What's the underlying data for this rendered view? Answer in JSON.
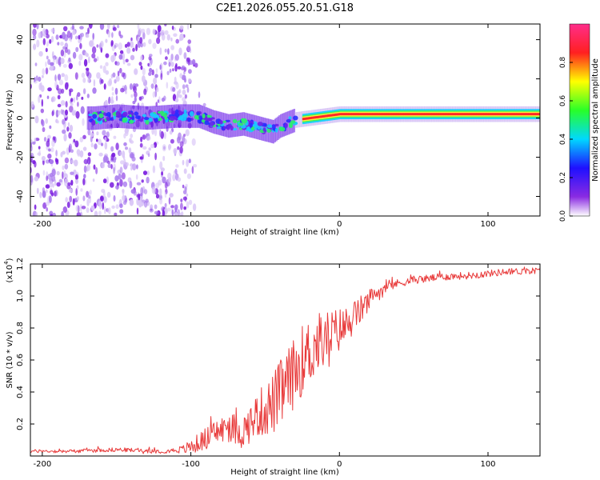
{
  "title": "C2E1.2026.055.20.51.G18",
  "chart_data": [
    {
      "type": "heatmap",
      "title": "C2E1.2026.055.20.51.G18",
      "xlabel": "Height of straight line (km)",
      "ylabel": "Frequency (Hz)",
      "xlim": [
        -208,
        135
      ],
      "ylim": [
        -50,
        48
      ],
      "xticks": [
        -200,
        -100,
        0,
        100
      ],
      "yticks": [
        -40,
        -20,
        0,
        20,
        40
      ],
      "ridge": [
        {
          "x": -165,
          "y": 0
        },
        {
          "x": -150,
          "y": 1
        },
        {
          "x": -130,
          "y": 0
        },
        {
          "x": -110,
          "y": 1
        },
        {
          "x": -95,
          "y": 1
        },
        {
          "x": -85,
          "y": -2
        },
        {
          "x": -75,
          "y": -4
        },
        {
          "x": -65,
          "y": -3
        },
        {
          "x": -55,
          "y": -5
        },
        {
          "x": -45,
          "y": -7
        },
        {
          "x": -40,
          "y": -4
        },
        {
          "x": -30,
          "y": -1
        },
        {
          "x": -20,
          "y": 0
        },
        {
          "x": -10,
          "y": 1
        },
        {
          "x": 0,
          "y": 2
        },
        {
          "x": 20,
          "y": 2
        },
        {
          "x": 60,
          "y": 2
        },
        {
          "x": 90,
          "y": 2
        },
        {
          "x": 135,
          "y": 2
        }
      ],
      "colorbar": {
        "label": "Normalized spectral amplitude",
        "range": [
          0,
          1
        ],
        "ticks": [
          0.0,
          0.2,
          0.4,
          0.6,
          0.8
        ],
        "tick_labels": [
          "0.0",
          "0.2",
          "0.4",
          "0.6",
          "0.8"
        ]
      }
    },
    {
      "type": "line",
      "xlabel": "Height of straight line (km)",
      "ylabel": "SNR (10 * v/v)",
      "exponent_label": "(x10",
      "exponent_power": "4",
      "exponent_close": ")",
      "xlim": [
        -208,
        135
      ],
      "ylim": [
        0.0,
        1.2
      ],
      "xticks": [
        -200,
        -100,
        0,
        100
      ],
      "yticks": [
        0.2,
        0.4,
        0.6,
        0.8,
        1.0,
        1.2
      ],
      "ytick_labels": [
        "0.2",
        "0.4",
        "0.6",
        "0.8",
        "1.0",
        "1.2"
      ],
      "series": [
        {
          "name": "SNR",
          "color": "#e83a3a",
          "points": [
            {
              "x": -208,
              "y": 0.03
            },
            {
              "x": -180,
              "y": 0.03
            },
            {
              "x": -150,
              "y": 0.04
            },
            {
              "x": -120,
              "y": 0.03
            },
            {
              "x": -105,
              "y": 0.04
            },
            {
              "x": -95,
              "y": 0.08
            },
            {
              "x": -85,
              "y": 0.14
            },
            {
              "x": -75,
              "y": 0.18
            },
            {
              "x": -65,
              "y": 0.15
            },
            {
              "x": -55,
              "y": 0.26
            },
            {
              "x": -45,
              "y": 0.32
            },
            {
              "x": -35,
              "y": 0.45
            },
            {
              "x": -25,
              "y": 0.6
            },
            {
              "x": -15,
              "y": 0.7
            },
            {
              "x": -5,
              "y": 0.76
            },
            {
              "x": 5,
              "y": 0.82
            },
            {
              "x": 15,
              "y": 0.92
            },
            {
              "x": 25,
              "y": 1.02
            },
            {
              "x": 35,
              "y": 1.07
            },
            {
              "x": 50,
              "y": 1.1
            },
            {
              "x": 70,
              "y": 1.12
            },
            {
              "x": 90,
              "y": 1.13
            },
            {
              "x": 110,
              "y": 1.15
            },
            {
              "x": 135,
              "y": 1.16
            }
          ],
          "noise": [
            {
              "x": -208,
              "a": 0.01
            },
            {
              "x": -110,
              "a": 0.015
            },
            {
              "x": -95,
              "a": 0.06
            },
            {
              "x": -60,
              "a": 0.12
            },
            {
              "x": -40,
              "a": 0.22
            },
            {
              "x": -20,
              "a": 0.22
            },
            {
              "x": 0,
              "a": 0.14
            },
            {
              "x": 20,
              "a": 0.07
            },
            {
              "x": 40,
              "a": 0.025
            },
            {
              "x": 135,
              "a": 0.02
            }
          ]
        }
      ]
    }
  ]
}
